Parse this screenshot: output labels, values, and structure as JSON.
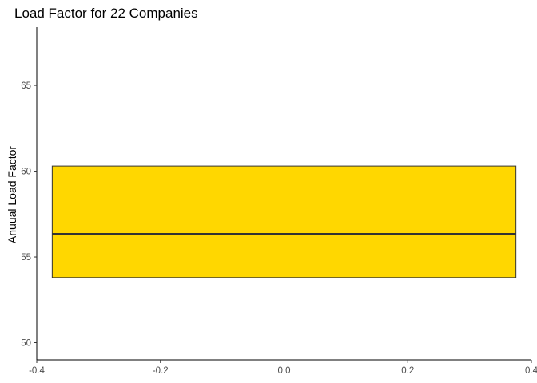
{
  "chart_data": {
    "type": "boxplot",
    "title": "Load Factor for 22 Companies",
    "xlabel": "",
    "ylabel": "Anuual Load Factor",
    "xlim": [
      -0.4,
      0.4
    ],
    "ylim": [
      49.0,
      68.4
    ],
    "x_ticks": [
      -0.4,
      -0.2,
      0.0,
      0.2,
      0.4
    ],
    "x_tick_labels": [
      "-0.4",
      "-0.2",
      "0.0",
      "0.2",
      "0.4"
    ],
    "y_ticks": [
      50,
      55,
      60,
      65
    ],
    "y_tick_labels": [
      "50",
      "55",
      "60",
      "65"
    ],
    "grid": false,
    "box": {
      "x_center": 0.0,
      "x_min": -0.375,
      "x_max": 0.375,
      "whisker_low": 49.8,
      "q1": 53.8,
      "median": 56.35,
      "q3": 60.3,
      "whisker_high": 67.6,
      "fill": "#FFD700",
      "outline": "#333333"
    }
  }
}
